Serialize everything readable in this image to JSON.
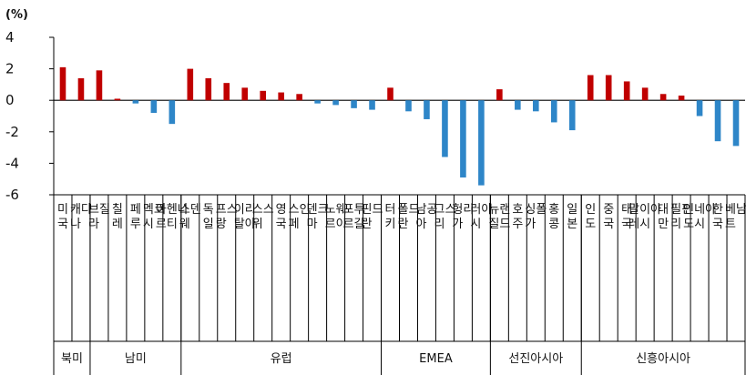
{
  "chart_data": {
    "type": "bar",
    "unit_label": "(%)",
    "ylim": [
      -6,
      4
    ],
    "yticks": [
      "4",
      "2",
      "0",
      "-2",
      "-4",
      "-6"
    ],
    "colors": {
      "positive": "#C00000",
      "negative": "#2E86C8",
      "axis": "#000000"
    },
    "categories": [
      "미국",
      "캐나다",
      "브라질",
      "칠레",
      "페루",
      "멕시코",
      "아르헨티나",
      "스웨덴",
      "독일",
      "프랑스",
      "이탈리아",
      "스위스",
      "영국",
      "스페인",
      "덴마크",
      "노르웨이",
      "포르투갈",
      "핀란드",
      "터키",
      "폴란드",
      "남아공",
      "그리스",
      "헝가리",
      "러시아",
      "뉴질랜드",
      "호주",
      "싱가폴",
      "홍콩",
      "일본",
      "인도",
      "중국",
      "태국",
      "말레이시아",
      "대만",
      "필리핀",
      "인도네시아",
      "한국",
      "베트남"
    ],
    "values": [
      2.1,
      1.4,
      1.9,
      0.1,
      -0.2,
      -0.8,
      -1.5,
      2.0,
      1.4,
      1.1,
      0.8,
      0.6,
      0.5,
      0.4,
      -0.2,
      -0.3,
      -0.5,
      -0.6,
      0.8,
      -0.7,
      -1.2,
      -3.6,
      -4.9,
      -5.4,
      0.7,
      -0.6,
      -0.7,
      -1.4,
      -1.9,
      1.6,
      1.6,
      1.2,
      0.8,
      0.4,
      0.3,
      -1.0,
      -2.6,
      -2.9
    ],
    "groups": [
      {
        "name": "북미",
        "count": 2
      },
      {
        "name": "남미",
        "count": 5
      },
      {
        "name": "유럽",
        "count": 11
      },
      {
        "name": "EMEA",
        "count": 6
      },
      {
        "name": "선진아시아",
        "count": 5
      },
      {
        "name": "신흥아시아",
        "count": 9
      }
    ]
  }
}
